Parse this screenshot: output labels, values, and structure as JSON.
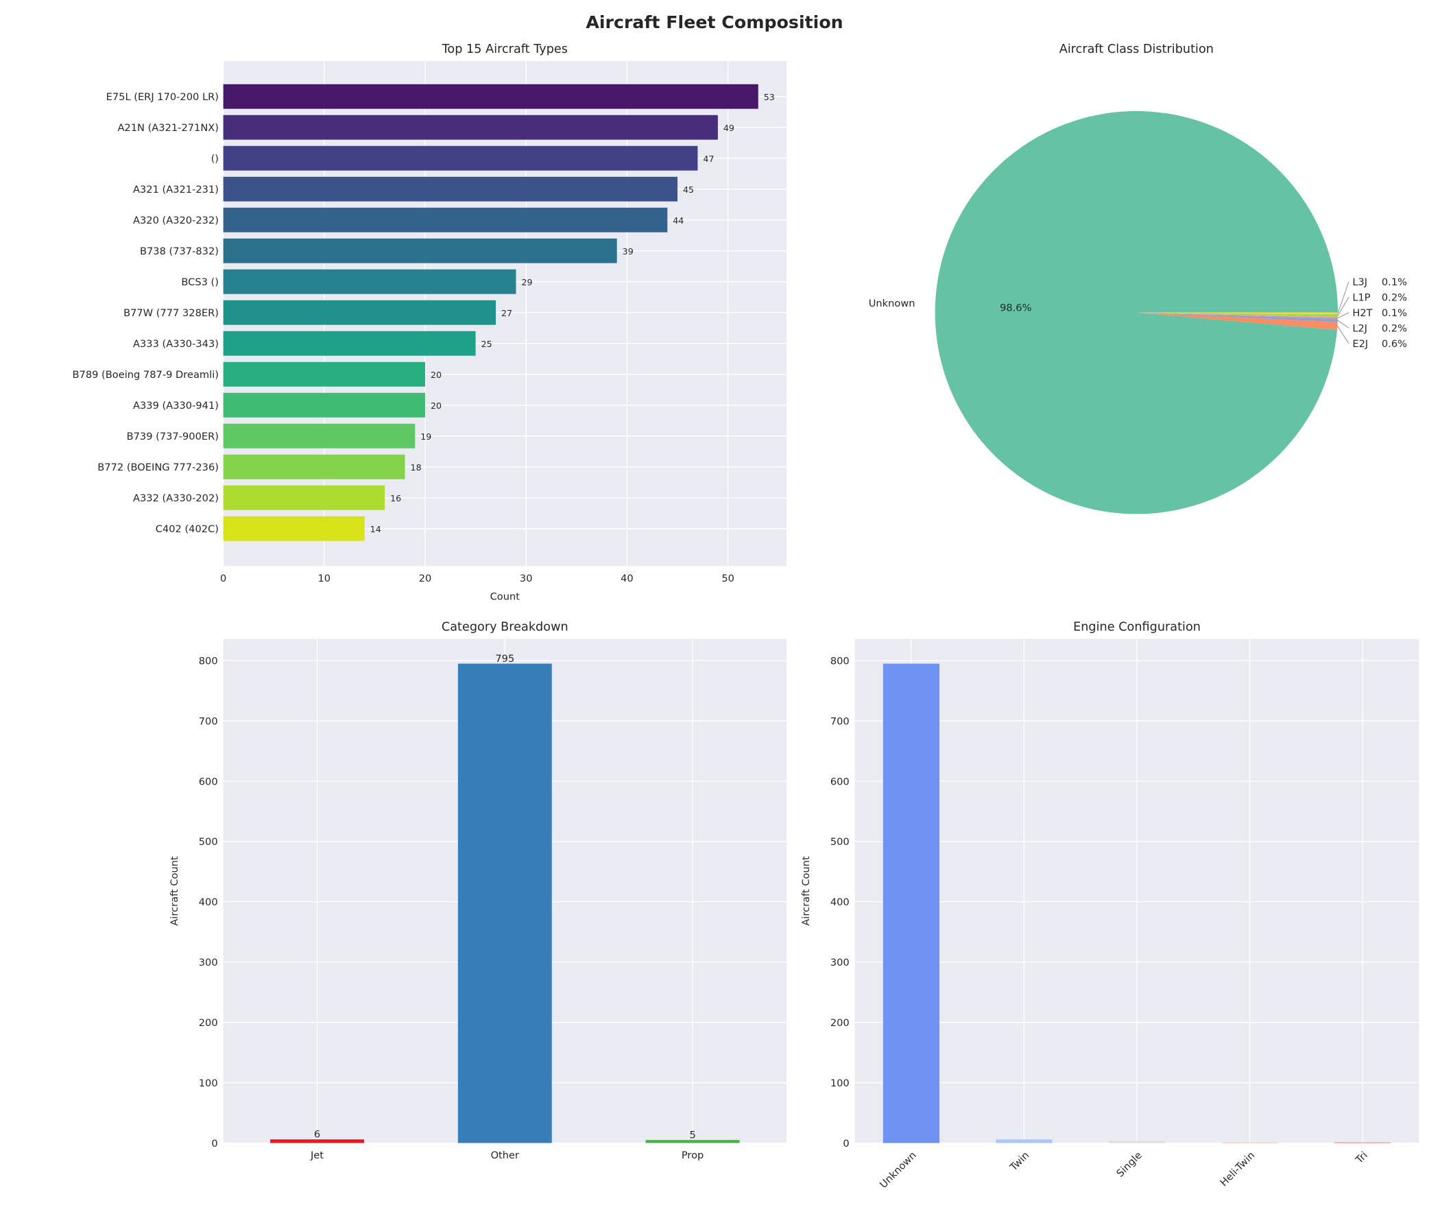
{
  "title": "Aircraft Fleet Composition",
  "chart_data": [
    {
      "type": "bar",
      "orientation": "horizontal",
      "title": "Top 15 Aircraft Types",
      "xlabel": "Count",
      "ylabel": "",
      "xlim": [
        0,
        55.8
      ],
      "xticks": [
        0,
        10,
        20,
        30,
        40,
        50
      ],
      "grid": true,
      "categories": [
        "E75L (ERJ 170-200 LR)",
        "A21N (A321-271NX)",
        "()",
        "A321 (A321-231)",
        "A320 (A320-232)",
        "B738 (737-832)",
        "BCS3 ()",
        "B77W (777 328ER)",
        "A333 (A330-343)",
        "B789 (Boeing 787-9 Dreamli)",
        "A339 (A330-941)",
        "B739 (737-900ER)",
        "B772 (BOEING 777-236)",
        "A332 (A330-202)",
        "C402 (402C)"
      ],
      "values": [
        53,
        49,
        47,
        45,
        44,
        39,
        29,
        27,
        25,
        20,
        20,
        19,
        18,
        16,
        14
      ],
      "colors": [
        "#48186a",
        "#472d7b",
        "#424086",
        "#3b528b",
        "#33638d",
        "#2c728e",
        "#26828e",
        "#21918c",
        "#1fa088",
        "#28ae80",
        "#3fbc73",
        "#5ec962",
        "#84d44b",
        "#addc30",
        "#d8e219"
      ]
    },
    {
      "type": "pie",
      "title": "Aircraft Class Distribution",
      "categories": [
        "Unknown",
        "E2J",
        "L2J",
        "H2T",
        "L1P",
        "L3J"
      ],
      "values": [
        795,
        5,
        2,
        1,
        2,
        1
      ],
      "percent_labels": [
        "98.6%",
        "0.6%",
        "0.2%",
        "0.1%",
        "0.2%",
        "0.1%"
      ],
      "colors": [
        "#66c2a5",
        "#fc8d62",
        "#8da0cb",
        "#e78ac3",
        "#a6d854",
        "#ffd92f"
      ]
    },
    {
      "type": "bar",
      "title": "Category Breakdown",
      "xlabel": "",
      "ylabel": "Aircraft Count",
      "ylim": [
        0,
        836
      ],
      "yticks": [
        0,
        100,
        200,
        300,
        400,
        500,
        600,
        700,
        800
      ],
      "grid": true,
      "categories": [
        "Jet",
        "Other",
        "Prop"
      ],
      "values": [
        6,
        795,
        5
      ],
      "colors": [
        "#e41a1c",
        "#377eb8",
        "#4daf4a"
      ]
    },
    {
      "type": "bar",
      "title": "Engine Configuration",
      "xlabel": "",
      "ylabel": "Aircraft Count",
      "ylim": [
        0,
        836
      ],
      "yticks": [
        0,
        100,
        200,
        300,
        400,
        500,
        600,
        700,
        800
      ],
      "grid": true,
      "categories": [
        "Unknown",
        "Twin",
        "Single",
        "Heli-Twin",
        "Tri"
      ],
      "values": [
        795,
        6,
        3,
        1,
        1
      ],
      "colors": [
        "#7093f3",
        "#aac7fd",
        "#dddcdc",
        "#f7b89c",
        "#e8765c"
      ]
    }
  ]
}
